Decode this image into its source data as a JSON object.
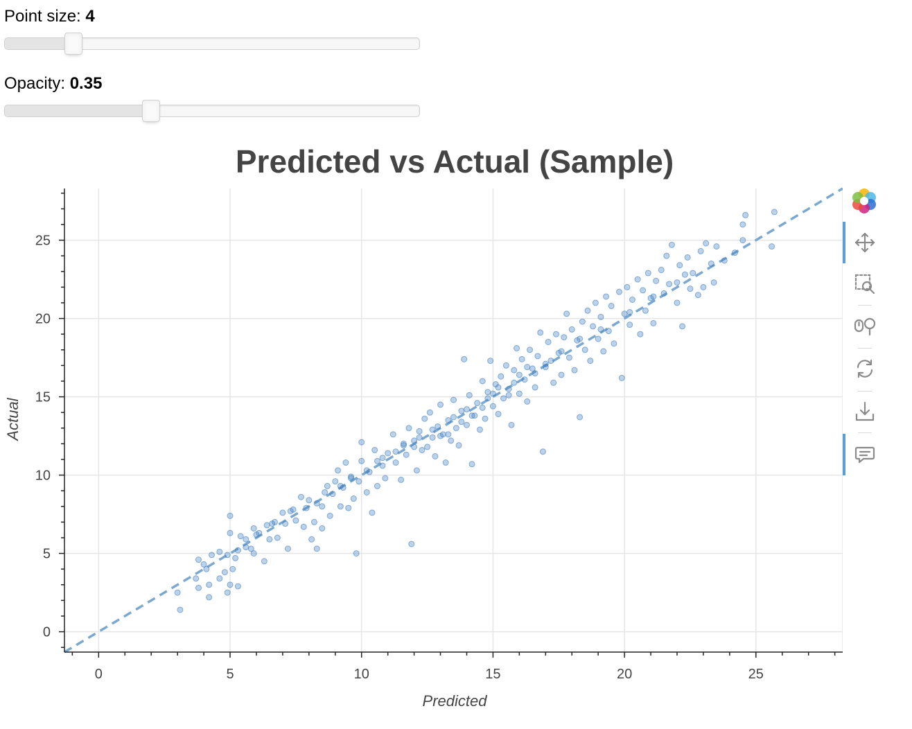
{
  "controls": {
    "point_size": {
      "label": "Point size: ",
      "value": "4",
      "min": 1,
      "max": 20,
      "current": 4
    },
    "opacity": {
      "label": "Opacity: ",
      "value": "0.35",
      "min": 0,
      "max": 1,
      "current": 0.35
    }
  },
  "toolbar": {
    "tools": [
      "bokeh-logo",
      "pan-tool",
      "box-zoom-tool",
      "wheel-zoom-tool",
      "reset-tool",
      "save-tool",
      "hover-tool"
    ],
    "active": [
      "pan-tool",
      "hover-tool"
    ],
    "accent_color": "#5aa0d8"
  },
  "chart_data": {
    "type": "scatter",
    "title": "Predicted vs Actual (Sample)",
    "xlabel": "Predicted",
    "ylabel": "Actual",
    "xlim": [
      -1.3,
      28.3
    ],
    "ylim": [
      -1.3,
      28.3
    ],
    "xticks": [
      0,
      5,
      10,
      15,
      20,
      25
    ],
    "yticks": [
      0,
      5,
      10,
      15,
      20,
      25
    ],
    "grid": true,
    "point_color": "#3f7ec0",
    "point_opacity": 0.35,
    "point_size": 4,
    "reference_line": {
      "style": "dashed",
      "color": "#7aa8d0",
      "from": [
        -1.3,
        -1.3
      ],
      "to": [
        28.3,
        28.3
      ]
    },
    "points": [
      [
        3.0,
        2.5
      ],
      [
        3.1,
        1.4
      ],
      [
        3.7,
        3.4
      ],
      [
        3.8,
        4.6
      ],
      [
        3.8,
        2.8
      ],
      [
        4.0,
        4.3
      ],
      [
        4.1,
        4.0
      ],
      [
        4.2,
        2.2
      ],
      [
        4.2,
        3.0
      ],
      [
        4.3,
        4.9
      ],
      [
        4.6,
        5.1
      ],
      [
        4.6,
        3.4
      ],
      [
        4.8,
        3.8
      ],
      [
        4.9,
        2.5
      ],
      [
        4.9,
        4.9
      ],
      [
        5.0,
        7.4
      ],
      [
        5.0,
        6.3
      ],
      [
        5.0,
        3.0
      ],
      [
        5.1,
        4.0
      ],
      [
        5.2,
        4.7
      ],
      [
        5.3,
        2.9
      ],
      [
        5.3,
        5.2
      ],
      [
        5.4,
        6.1
      ],
      [
        5.6,
        5.9
      ],
      [
        5.8,
        5.3
      ],
      [
        5.9,
        5.0
      ],
      [
        5.9,
        6.6
      ],
      [
        6.1,
        6.3
      ],
      [
        6.3,
        4.5
      ],
      [
        6.4,
        6.8
      ],
      [
        6.5,
        5.9
      ],
      [
        6.7,
        7.0
      ],
      [
        6.8,
        6.0
      ],
      [
        7.0,
        7.6
      ],
      [
        7.1,
        6.9
      ],
      [
        7.2,
        5.3
      ],
      [
        7.3,
        7.7
      ],
      [
        7.5,
        7.1
      ],
      [
        7.7,
        8.6
      ],
      [
        7.8,
        6.7
      ],
      [
        7.9,
        7.9
      ],
      [
        8.1,
        5.9
      ],
      [
        8.2,
        7.0
      ],
      [
        8.3,
        8.2
      ],
      [
        8.3,
        5.3
      ],
      [
        8.5,
        8.0
      ],
      [
        8.5,
        6.6
      ],
      [
        8.7,
        9.3
      ],
      [
        8.8,
        7.4
      ],
      [
        8.9,
        8.8
      ],
      [
        9.0,
        9.6
      ],
      [
        9.1,
        10.3
      ],
      [
        9.2,
        8.0
      ],
      [
        9.3,
        9.2
      ],
      [
        9.4,
        10.8
      ],
      [
        9.5,
        7.9
      ],
      [
        9.6,
        9.8
      ],
      [
        9.7,
        8.5
      ],
      [
        9.8,
        5.0
      ],
      [
        9.9,
        9.6
      ],
      [
        10.0,
        10.9
      ],
      [
        10.0,
        12.1
      ],
      [
        10.2,
        8.9
      ],
      [
        10.3,
        10.2
      ],
      [
        10.4,
        7.6
      ],
      [
        10.5,
        11.6
      ],
      [
        10.6,
        9.3
      ],
      [
        10.8,
        10.6
      ],
      [
        10.9,
        9.8
      ],
      [
        11.0,
        11.4
      ],
      [
        11.2,
        12.6
      ],
      [
        11.3,
        10.8
      ],
      [
        11.5,
        9.7
      ],
      [
        11.6,
        12.0
      ],
      [
        11.7,
        11.3
      ],
      [
        11.8,
        13.0
      ],
      [
        11.9,
        5.6
      ],
      [
        12.0,
        12.2
      ],
      [
        12.1,
        10.3
      ],
      [
        12.2,
        12.8
      ],
      [
        12.3,
        11.6
      ],
      [
        12.4,
        13.6
      ],
      [
        12.5,
        11.8
      ],
      [
        12.6,
        14.0
      ],
      [
        12.7,
        12.4
      ],
      [
        12.8,
        11.2
      ],
      [
        12.9,
        13.1
      ],
      [
        13.0,
        14.5
      ],
      [
        13.1,
        12.6
      ],
      [
        13.2,
        10.8
      ],
      [
        13.3,
        13.5
      ],
      [
        13.4,
        12.2
      ],
      [
        13.5,
        14.8
      ],
      [
        13.6,
        13.0
      ],
      [
        13.7,
        11.9
      ],
      [
        13.8,
        14.1
      ],
      [
        13.9,
        17.4
      ],
      [
        14.0,
        13.2
      ],
      [
        14.1,
        15.1
      ],
      [
        14.2,
        10.7
      ],
      [
        14.3,
        13.8
      ],
      [
        14.4,
        14.6
      ],
      [
        14.5,
        12.9
      ],
      [
        14.6,
        16.0
      ],
      [
        14.7,
        13.6
      ],
      [
        14.8,
        15.3
      ],
      [
        14.9,
        17.3
      ],
      [
        15.0,
        14.4
      ],
      [
        15.1,
        15.8
      ],
      [
        15.2,
        13.9
      ],
      [
        15.3,
        16.3
      ],
      [
        15.4,
        14.9
      ],
      [
        15.5,
        17.0
      ],
      [
        15.6,
        15.5
      ],
      [
        15.7,
        13.2
      ],
      [
        15.8,
        16.7
      ],
      [
        15.9,
        18.1
      ],
      [
        16.0,
        15.2
      ],
      [
        16.1,
        17.4
      ],
      [
        16.2,
        16.1
      ],
      [
        16.3,
        14.7
      ],
      [
        16.4,
        18.0
      ],
      [
        16.5,
        16.8
      ],
      [
        16.6,
        15.6
      ],
      [
        16.7,
        17.6
      ],
      [
        16.8,
        19.1
      ],
      [
        16.9,
        11.5
      ],
      [
        17.0,
        16.9
      ],
      [
        17.1,
        18.5
      ],
      [
        17.2,
        17.3
      ],
      [
        17.3,
        15.9
      ],
      [
        17.4,
        19.0
      ],
      [
        17.5,
        17.8
      ],
      [
        17.6,
        16.4
      ],
      [
        17.7,
        18.8
      ],
      [
        17.8,
        20.3
      ],
      [
        17.9,
        17.5
      ],
      [
        18.0,
        19.3
      ],
      [
        18.1,
        16.7
      ],
      [
        18.2,
        18.6
      ],
      [
        18.3,
        13.7
      ],
      [
        18.4,
        19.8
      ],
      [
        18.5,
        18.0
      ],
      [
        18.6,
        20.5
      ],
      [
        18.7,
        17.3
      ],
      [
        18.8,
        19.5
      ],
      [
        18.9,
        21.0
      ],
      [
        19.0,
        18.7
      ],
      [
        19.1,
        20.1
      ],
      [
        19.2,
        17.9
      ],
      [
        19.3,
        21.4
      ],
      [
        19.4,
        19.2
      ],
      [
        19.5,
        20.8
      ],
      [
        19.6,
        18.4
      ],
      [
        19.8,
        21.7
      ],
      [
        19.9,
        16.2
      ],
      [
        20.0,
        20.3
      ],
      [
        20.1,
        22.0
      ],
      [
        20.2,
        19.6
      ],
      [
        20.3,
        21.2
      ],
      [
        20.5,
        22.5
      ],
      [
        20.6,
        19.0
      ],
      [
        20.7,
        21.8
      ],
      [
        20.8,
        20.5
      ],
      [
        20.9,
        22.9
      ],
      [
        21.0,
        21.3
      ],
      [
        21.1,
        19.7
      ],
      [
        21.2,
        22.4
      ],
      [
        21.4,
        23.1
      ],
      [
        21.5,
        21.6
      ],
      [
        21.6,
        24.0
      ],
      [
        21.7,
        22.2
      ],
      [
        21.8,
        24.7
      ],
      [
        22.0,
        21.0
      ],
      [
        22.1,
        23.4
      ],
      [
        22.2,
        19.5
      ],
      [
        22.3,
        22.8
      ],
      [
        22.4,
        23.9
      ],
      [
        22.5,
        21.9
      ],
      [
        22.6,
        22.9
      ],
      [
        22.8,
        21.5
      ],
      [
        22.9,
        24.3
      ],
      [
        23.0,
        22.0
      ],
      [
        23.1,
        24.8
      ],
      [
        23.3,
        23.5
      ],
      [
        23.4,
        22.3
      ],
      [
        23.5,
        24.6
      ],
      [
        23.8,
        23.7
      ],
      [
        24.2,
        24.2
      ],
      [
        24.5,
        25.0
      ],
      [
        24.5,
        26.0
      ],
      [
        24.6,
        26.6
      ],
      [
        25.7,
        26.8
      ],
      [
        25.6,
        24.6
      ],
      [
        13.0,
        12.5
      ],
      [
        13.5,
        13.7
      ],
      [
        14.0,
        14.2
      ],
      [
        14.6,
        14.3
      ],
      [
        15.2,
        15.6
      ],
      [
        15.8,
        15.9
      ],
      [
        16.6,
        16.5
      ],
      [
        12.2,
        12.4
      ],
      [
        11.6,
        11.9
      ],
      [
        10.8,
        11.1
      ],
      [
        9.6,
        9.9
      ],
      [
        8.6,
        8.9
      ],
      [
        7.4,
        7.8
      ],
      [
        6.6,
        6.9
      ],
      [
        5.6,
        5.4
      ],
      [
        17.6,
        17.9
      ],
      [
        18.3,
        18.7
      ],
      [
        19.1,
        19.3
      ],
      [
        20.2,
        20.4
      ],
      [
        21.1,
        21.4
      ],
      [
        22.0,
        22.3
      ],
      [
        13.3,
        12.6
      ],
      [
        14.2,
        13.8
      ],
      [
        15.0,
        15.2
      ],
      [
        16.0,
        16.4
      ],
      [
        12.7,
        12.9
      ],
      [
        11.3,
        11.5
      ],
      [
        10.2,
        10.3
      ],
      [
        9.2,
        9.3
      ],
      [
        13.8,
        13.4
      ],
      [
        14.8,
        14.9
      ],
      [
        15.6,
        15.1
      ],
      [
        16.3,
        16.9
      ],
      [
        17.0,
        17.1
      ],
      [
        12.0,
        11.8
      ],
      [
        10.6,
        10.9
      ],
      [
        8.0,
        8.4
      ],
      [
        6.0,
        6.2
      ]
    ]
  }
}
